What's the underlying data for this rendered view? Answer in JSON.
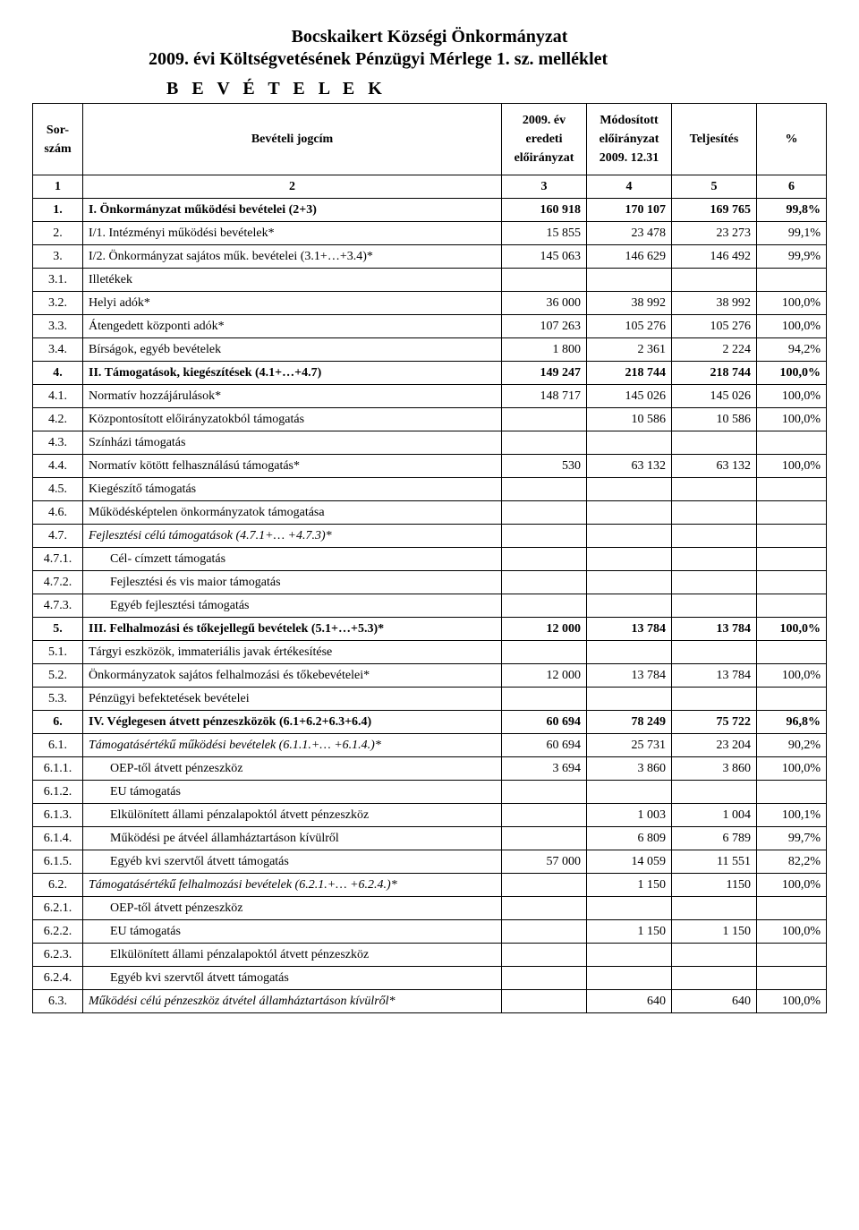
{
  "doc": {
    "title_line1": "Bocskaikert Községi  Önkormányzat",
    "title_line2": "2009. évi Költségvetésének Pénzügyi Mérlege 1. sz. melléklet",
    "section_label": "B E V É T E L E K"
  },
  "columns": {
    "sor": "Sor-\nszám",
    "nev": "Bevételi jogcím",
    "eredeti": "2009. év eredeti előirányzat",
    "modositott": "Módosított előirányzat 2009. 12.31",
    "teljesites": "Teljesítés",
    "pct": "%"
  },
  "headline": {
    "c1": "1",
    "c2": "2",
    "c3": "3",
    "c4": "4",
    "c5": "5",
    "c6": "6"
  },
  "rows": [
    {
      "sor": "1.",
      "nev": "I. Önkormányzat működési bevételei (2+3)",
      "v": [
        "160 918",
        "170 107",
        "169 765",
        "99,8%"
      ],
      "bold": true,
      "line": true
    },
    {
      "sor": "2.",
      "nev": "I/1. Intézményi működési bevételek*",
      "v": [
        "15 855",
        "23 478",
        "23 273",
        "99,1%"
      ],
      "line": true
    },
    {
      "sor": "3.",
      "nev": "I/2. Önkormányzat sajátos műk. bevételei (3.1+…+3.4)*",
      "v": [
        "145 063",
        "146 629",
        "146 492",
        "99,9%"
      ],
      "line": true
    },
    {
      "sor": "3.1.",
      "nev": "Illetékek",
      "v": [
        "",
        "",
        "",
        ""
      ],
      "line": true
    },
    {
      "sor": "3.2.",
      "nev": "Helyi adók*",
      "v": [
        "36 000",
        "38 992",
        "38 992",
        "100,0%"
      ],
      "line": true
    },
    {
      "sor": "3.3.",
      "nev": "Átengedett központi adók*",
      "v": [
        "107 263",
        "105 276",
        "105 276",
        "100,0%"
      ],
      "line": true
    },
    {
      "sor": "3.4.",
      "nev": "Bírságok, egyéb bevételek",
      "v": [
        "1 800",
        "2 361",
        "2 224",
        "94,2%"
      ],
      "line": true
    },
    {
      "sor": "4.",
      "nev": "II. Támogatások, kiegészítések (4.1+…+4.7)",
      "v": [
        "149 247",
        "218 744",
        "218 744",
        "100,0%"
      ],
      "bold": true,
      "line": true
    },
    {
      "sor": "4.1.",
      "nev": "Normatív hozzájárulások*",
      "v": [
        "148 717",
        "145 026",
        "145 026",
        "100,0%"
      ],
      "line": true
    },
    {
      "sor": "4.2.",
      "nev": "Központosított előirányzatokból támogatás",
      "v": [
        "",
        "10 586",
        "10 586",
        "100,0%"
      ],
      "line": true
    },
    {
      "sor": "4.3.",
      "nev": "Színházi támogatás",
      "v": [
        "",
        "",
        "",
        ""
      ],
      "line": true
    },
    {
      "sor": "4.4.",
      "nev": "Normatív kötött felhasználású  támogatás*",
      "v": [
        "530",
        "63 132",
        "63 132",
        "100,0%"
      ],
      "line": true
    },
    {
      "sor": "4.5.",
      "nev": "Kiegészítő támogatás",
      "v": [
        "",
        "",
        "",
        ""
      ],
      "line": true
    },
    {
      "sor": "4.6.",
      "nev": "Működésképtelen önkormányzatok támogatása",
      "v": [
        "",
        "",
        "",
        ""
      ],
      "line": true
    },
    {
      "sor": "4.7.",
      "nev": "Fejlesztési célú támogatások (4.7.1+… +4.7.3)*",
      "v": [
        "",
        "",
        "",
        ""
      ],
      "ital": true,
      "line": true
    },
    {
      "sor": "4.7.1.",
      "nev": "Cél- címzett támogatás",
      "v": [
        "",
        "",
        "",
        ""
      ],
      "indent": true,
      "line": true
    },
    {
      "sor": "4.7.2.",
      "nev": "Fejlesztési és vis maior támogatás",
      "v": [
        "",
        "",
        "",
        ""
      ],
      "indent": true,
      "line": true
    },
    {
      "sor": "4.7.3.",
      "nev": "Egyéb fejlesztési támogatás",
      "v": [
        "",
        "",
        "",
        ""
      ],
      "indent": true,
      "line": true
    },
    {
      "sor": "5.",
      "nev": "III. Felhalmozási és tőkejellegű bevételek (5.1+…+5.3)*",
      "v": [
        "12 000",
        "13 784",
        "13 784",
        "100,0%"
      ],
      "bold": true,
      "line": true
    },
    {
      "sor": "5.1.",
      "nev": "Tárgyi eszközök, immateriális javak értékesítése",
      "v": [
        "",
        "",
        "",
        ""
      ],
      "line": true
    },
    {
      "sor": "5.2.",
      "nev": "Önkormányzatok sajátos felhalmozási és tőkebevételei*",
      "v": [
        "12 000",
        "13 784",
        "13 784",
        "100,0%"
      ],
      "line": true
    },
    {
      "sor": "5.3.",
      "nev": "Pénzügyi befektetések bevételei",
      "v": [
        "",
        "",
        "",
        ""
      ],
      "line": true
    },
    {
      "sor": "6.",
      "nev": "IV. Véglegesen átvett pénzeszközök (6.1+6.2+6.3+6.4)",
      "v": [
        "60 694",
        "78 249",
        "75 722",
        "96,8%"
      ],
      "bold": true,
      "line": true
    },
    {
      "sor": "6.1.",
      "nev": "Támogatásértékű működési bevételek (6.1.1.+… +6.1.4.)*",
      "v": [
        "60 694",
        "25 731",
        "23 204",
        "90,2%"
      ],
      "ital": true,
      "line": true
    },
    {
      "sor": "6.1.1.",
      "nev": "OEP-től átvett pénzeszköz",
      "v": [
        "3 694",
        "3 860",
        "3 860",
        "100,0%"
      ],
      "indent": true,
      "line": true
    },
    {
      "sor": "6.1.2.",
      "nev": "EU támogatás",
      "v": [
        "",
        "",
        "",
        ""
      ],
      "indent": true,
      "line": true
    },
    {
      "sor": "6.1.3.",
      "nev": "Elkülönített állami pénzalapoktól átvett pénzeszköz",
      "v": [
        "",
        "1 003",
        "1 004",
        "100,1%"
      ],
      "indent": true,
      "line": true
    },
    {
      "sor": "6.1.4.",
      "nev": "Működési pe átvéel államháztartáson kívülről",
      "v": [
        "",
        "6 809",
        "6 789",
        "99,7%"
      ],
      "indent": true,
      "line": true
    },
    {
      "sor": "6.1.5.",
      "nev": "Egyéb kvi szervtől átvett támogatás",
      "v": [
        "57 000",
        "14 059",
        "11 551",
        "82,2%"
      ],
      "indent": true,
      "line": true
    },
    {
      "sor": "6.2.",
      "nev": "Támogatásértékű felhalmozási bevételek (6.2.1.+… +6.2.4.)*",
      "v": [
        "",
        "1 150",
        "1150",
        "100,0%"
      ],
      "ital": true,
      "line": true
    },
    {
      "sor": "6.2.1.",
      "nev": "OEP-től átvett pénzeszköz",
      "v": [
        "",
        "",
        "",
        ""
      ],
      "indent": true,
      "line": true
    },
    {
      "sor": "6.2.2.",
      "nev": "EU támogatás",
      "v": [
        "",
        "1 150",
        "1 150",
        "100,0%"
      ],
      "indent": true,
      "line": true
    },
    {
      "sor": "6.2.3.",
      "nev": "Elkülönített állami pénzalapoktól átvett pénzeszköz",
      "v": [
        "",
        "",
        "",
        ""
      ],
      "indent": true,
      "line": true
    },
    {
      "sor": "6.2.4.",
      "nev": "Egyéb kvi szervtől átvett támogatás",
      "v": [
        "",
        "",
        "",
        ""
      ],
      "indent": true,
      "line": true
    },
    {
      "sor": "6.3.",
      "nev": "Működési célú pénzeszköz átvétel államháztartáson kívülről*",
      "v": [
        "",
        "640",
        "640",
        "100,0%"
      ],
      "ital": true,
      "line": true
    }
  ]
}
